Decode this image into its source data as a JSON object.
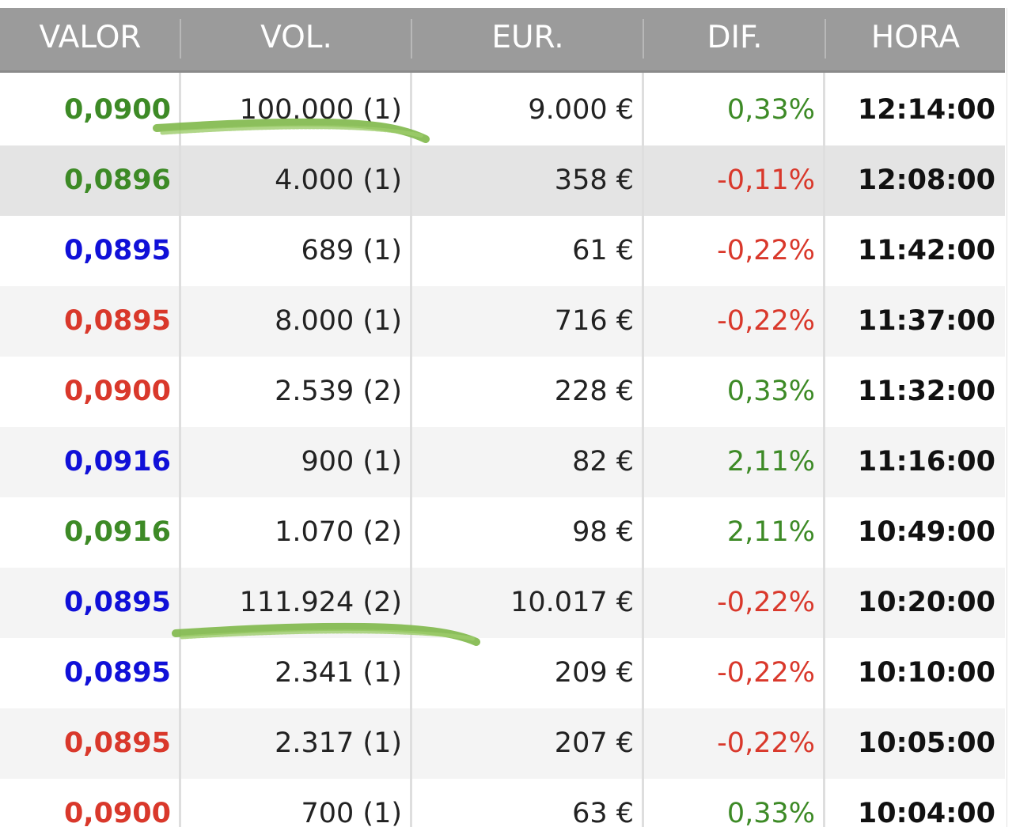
{
  "table": {
    "columns": {
      "valor": "VALOR",
      "vol": "VOL.",
      "eur": "EUR.",
      "dif": "DIF.",
      "hora": "HORA"
    },
    "rows": [
      {
        "valor": "0,0900",
        "vol": "100.000 (1)",
        "eur": "9.000 €",
        "dif": "0,33%",
        "hora": "12:14:00"
      },
      {
        "valor": "0,0896",
        "vol": "4.000 (1)",
        "eur": "358 €",
        "dif": "-0,11%",
        "hora": "12:08:00"
      },
      {
        "valor": "0,0895",
        "vol": "689 (1)",
        "eur": "61 €",
        "dif": "-0,22%",
        "hora": "11:42:00"
      },
      {
        "valor": "0,0895",
        "vol": "8.000 (1)",
        "eur": "716 €",
        "dif": "-0,22%",
        "hora": "11:37:00"
      },
      {
        "valor": "0,0900",
        "vol": "2.539 (2)",
        "eur": "228 €",
        "dif": "0,33%",
        "hora": "11:32:00"
      },
      {
        "valor": "0,0916",
        "vol": "900 (1)",
        "eur": "82 €",
        "dif": "2,11%",
        "hora": "11:16:00"
      },
      {
        "valor": "0,0916",
        "vol": "1.070 (2)",
        "eur": "98 €",
        "dif": "2,11%",
        "hora": "10:49:00"
      },
      {
        "valor": "0,0895",
        "vol": "111.924 (2)",
        "eur": "10.017 €",
        "dif": "-0,22%",
        "hora": "10:20:00"
      },
      {
        "valor": "0,0895",
        "vol": "2.341 (1)",
        "eur": "209 €",
        "dif": "-0,22%",
        "hora": "10:10:00"
      },
      {
        "valor": "0,0895",
        "vol": "2.317 (1)",
        "eur": "207 €",
        "dif": "-0,22%",
        "hora": "10:05:00"
      },
      {
        "valor": "0,0900",
        "vol": "700 (1)",
        "eur": "63 €",
        "dif": "0,33%",
        "hora": "10:04:00"
      }
    ]
  },
  "row_valor_colors": [
    "green",
    "green",
    "blue",
    "red",
    "red",
    "blue",
    "green",
    "blue",
    "blue",
    "red",
    "red"
  ],
  "colors": {
    "header_bg": "#9b9b9b",
    "header_text": "#ffffff",
    "green": "#3d8a26",
    "blue": "#1010d8",
    "red": "#d9382b",
    "positive": "#3d8a26",
    "negative": "#d9382b",
    "row_highlight": "#e4e4e4",
    "row_alt": "#f4f4f4",
    "annotation_stroke": "#7fb84a"
  }
}
